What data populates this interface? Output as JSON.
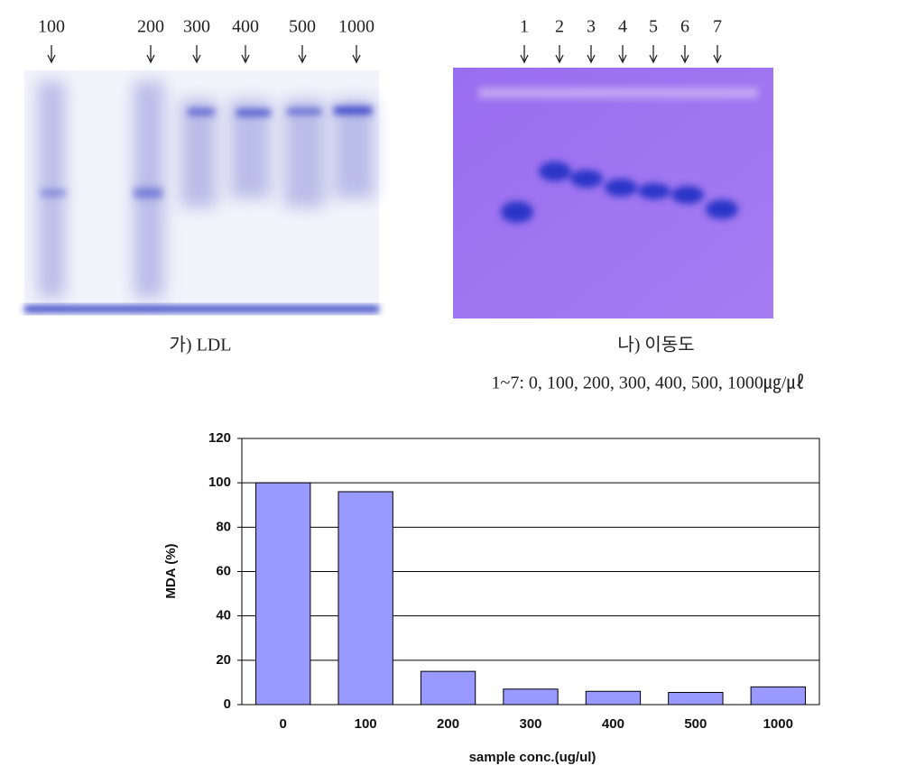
{
  "gel_a": {
    "lanes": [
      "100",
      "200",
      "300",
      "400",
      "500",
      "1000"
    ],
    "caption": "가) LDL"
  },
  "gel_b": {
    "lanes": [
      "1",
      "2",
      "3",
      "4",
      "5",
      "6",
      "7"
    ],
    "caption": "나) 이동도",
    "note": "1~7: 0, 100, 200, 300, 400, 500, 1000㎍/㎕"
  },
  "chart_data": {
    "type": "bar",
    "ylabel": "MDA (%)",
    "xlabel": "sample conc.(ug/ul)",
    "categories": [
      "0",
      "100",
      "200",
      "300",
      "400",
      "500",
      "1000"
    ],
    "values": [
      100,
      96,
      15,
      7,
      6,
      5.5,
      8
    ],
    "color": "#9999ff",
    "ylim": [
      0,
      120
    ],
    "yticks": [
      0,
      20,
      40,
      60,
      80,
      100,
      120
    ],
    "grid": true
  }
}
